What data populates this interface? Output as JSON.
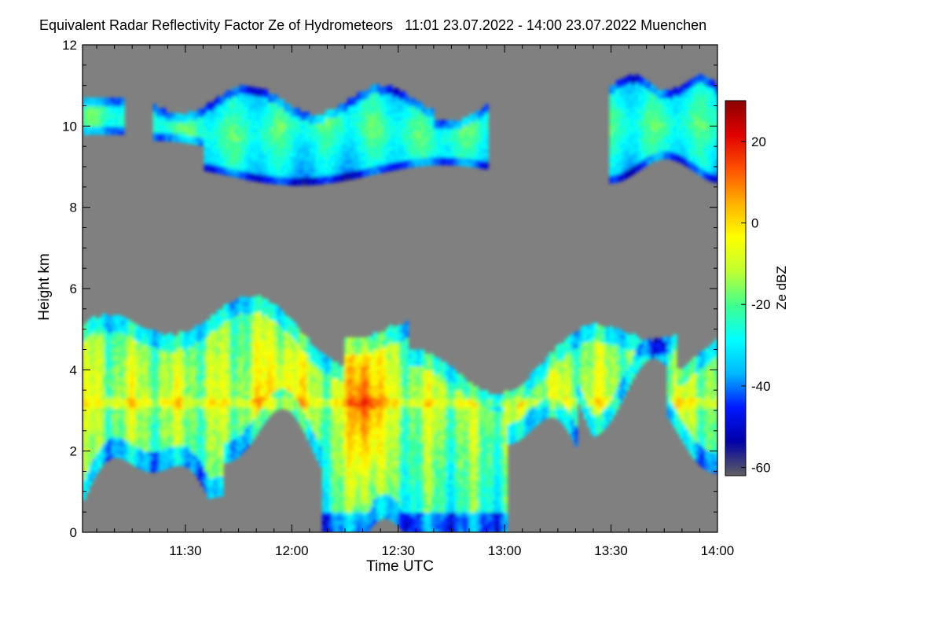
{
  "chart_data": {
    "type": "heatmap",
    "title": "Equivalent Radar Reflectivity Factor Ze of Hydrometeors   11:01 23.07.2022 - 14:00 23.07.2022 Muenchen",
    "xlabel": "Time UTC",
    "ylabel": "Height km",
    "x_ticks": [
      "11:30",
      "12:00",
      "12:30",
      "13:00",
      "13:30",
      "14:00"
    ],
    "x_tick_minutes": [
      30,
      60,
      90,
      120,
      150,
      180
    ],
    "x_range_minutes": [
      1,
      180
    ],
    "y_ticks": [
      0,
      2,
      4,
      6,
      8,
      10,
      12
    ],
    "y_range": [
      0,
      12
    ],
    "colorbar": {
      "label": "Ze dBZ",
      "range": [
        -62,
        30
      ],
      "ticks": [
        20,
        0,
        -20,
        -40,
        -60
      ],
      "colors": [
        "#606060",
        "#0000a8",
        "#0018ff",
        "#00b8ff",
        "#00ffff",
        "#40ff90",
        "#c0ff30",
        "#ffff00",
        "#ffb000",
        "#ff5000",
        "#e00000",
        "#8a0000"
      ]
    },
    "background_color": "#808080",
    "layers": [
      {
        "name": "upper cloud band A",
        "time_start_min": 1,
        "time_end_min": 117,
        "base_km": 8.8,
        "top_km": 11.2,
        "typical_dbz": -25
      },
      {
        "name": "upper cloud band B",
        "time_start_min": 149,
        "time_end_min": 180,
        "base_km": 8.6,
        "top_km": 11.3,
        "typical_dbz": -22
      },
      {
        "name": "lower precipitating cloud",
        "time_start_min": 1,
        "time_end_min": 180,
        "base_km": 0,
        "top_km": 5.8,
        "typical_dbz": -5
      },
      {
        "name": "convective core",
        "time_start_min": 74,
        "time_end_min": 86,
        "base_km": 0,
        "top_km": 5.5,
        "typical_dbz": 18
      }
    ]
  }
}
